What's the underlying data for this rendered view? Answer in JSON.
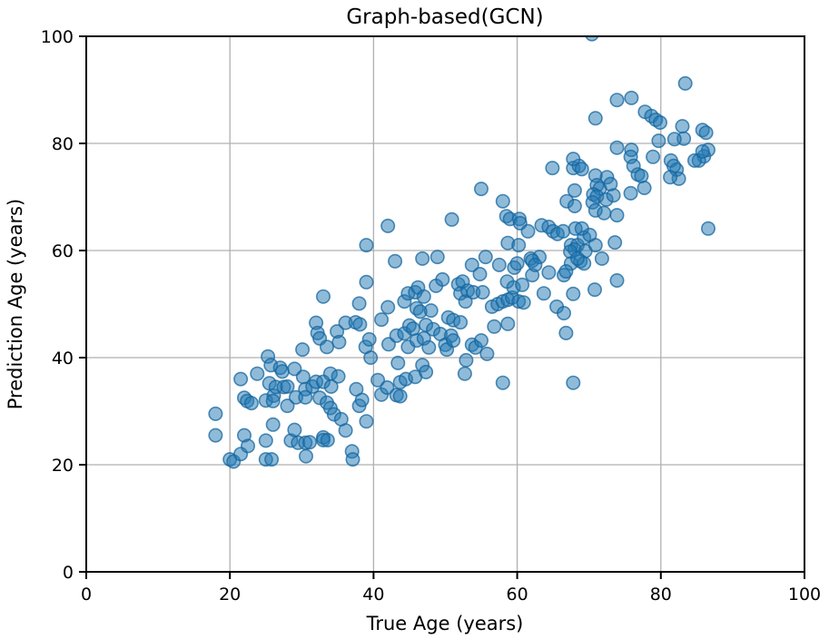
{
  "figure": {
    "title": "Graph-based(GCN)",
    "xlabel": "True Age (years)",
    "ylabel": "Prediction Age (years)"
  },
  "chart_data": {
    "type": "scatter",
    "title": "Graph-based(GCN)",
    "xlabel": "True Age (years)",
    "ylabel": "Prediction Age (years)",
    "xlim": [
      0,
      100
    ],
    "ylim": [
      0,
      100
    ],
    "xticks": [
      0,
      20,
      40,
      60,
      80,
      100
    ],
    "yticks": [
      0,
      20,
      40,
      60,
      80,
      100
    ],
    "grid": true,
    "legend": null,
    "colors": {
      "marker_fill": "rgba(31,119,180,0.5)",
      "marker_edge": "rgba(21,101,157,0.75)",
      "grid": "#b0b0b0",
      "spine": "#000000"
    },
    "marker": {
      "shape": "circle",
      "radius_px": 7.2
    },
    "points": [
      [
        18,
        29.5
      ],
      [
        18,
        25.5
      ],
      [
        20,
        21
      ],
      [
        20.5,
        20.6
      ],
      [
        21.5,
        36
      ],
      [
        21.5,
        22
      ],
      [
        22,
        32.5
      ],
      [
        22.4,
        31.9
      ],
      [
        22,
        25.5
      ],
      [
        22.5,
        23.5
      ],
      [
        23,
        31.5
      ],
      [
        23.8,
        37
      ],
      [
        25,
        32
      ],
      [
        25,
        21
      ],
      [
        25,
        24.5
      ],
      [
        25.3,
        40.2
      ],
      [
        25.7,
        38.6
      ],
      [
        25.5,
        35.2
      ],
      [
        25.8,
        21
      ],
      [
        26.1,
        32.9
      ],
      [
        26.4,
        34.5
      ],
      [
        26,
        27.5
      ],
      [
        26,
        31.9
      ],
      [
        27,
        38.1
      ],
      [
        27.3,
        37.4
      ],
      [
        27.5,
        34.5
      ],
      [
        28,
        31
      ],
      [
        28,
        34.6
      ],
      [
        28.5,
        24.5
      ],
      [
        29,
        37.9
      ],
      [
        29,
        26.5
      ],
      [
        29.5,
        24.1
      ],
      [
        29.2,
        32.6
      ],
      [
        30.1,
        41.5
      ],
      [
        30.2,
        36.4
      ],
      [
        30.5,
        34.1
      ],
      [
        30.5,
        32.6
      ],
      [
        30.5,
        24.1
      ],
      [
        30.6,
        21.6
      ],
      [
        31.5,
        34.6
      ],
      [
        31.1,
        24.2
      ],
      [
        32,
        35.5
      ],
      [
        32.5,
        32.5
      ],
      [
        33,
        35.5
      ],
      [
        33,
        25.1
      ],
      [
        33,
        24.6
      ],
      [
        32,
        46.5
      ],
      [
        32.2,
        44.6
      ],
      [
        32.5,
        43.6
      ],
      [
        33,
        51.4
      ],
      [
        33.5,
        42
      ],
      [
        33.5,
        31.6
      ],
      [
        33.6,
        24.6
      ],
      [
        34,
        37
      ],
      [
        34.1,
        34.6
      ],
      [
        34,
        30.6
      ],
      [
        34.5,
        29.4
      ],
      [
        35.1,
        36.5
      ],
      [
        35.5,
        28.5
      ],
      [
        34.9,
        44.9
      ],
      [
        35.2,
        42.9
      ],
      [
        36.1,
        46.5
      ],
      [
        36.1,
        26.4
      ],
      [
        37,
        22.5
      ],
      [
        37.1,
        21
      ],
      [
        37.5,
        46.6
      ],
      [
        37.6,
        34.1
      ],
      [
        38,
        50.1
      ],
      [
        38.1,
        46.2
      ],
      [
        38,
        31
      ],
      [
        38.4,
        32.1
      ],
      [
        39,
        61
      ],
      [
        39,
        54.1
      ],
      [
        38.9,
        42
      ],
      [
        39,
        28.1
      ],
      [
        39.4,
        43.4
      ],
      [
        39.6,
        40
      ],
      [
        40.6,
        35.8
      ],
      [
        41.1,
        47.1
      ],
      [
        41.1,
        33.1
      ],
      [
        42,
        64.6
      ],
      [
        42,
        49.4
      ],
      [
        42.1,
        42.5
      ],
      [
        41.9,
        34.4
      ],
      [
        43,
        58
      ],
      [
        43.2,
        44.1
      ],
      [
        43.2,
        33
      ],
      [
        43.7,
        32.8
      ],
      [
        43.4,
        39
      ],
      [
        43.7,
        35.4
      ],
      [
        44.3,
        44.5
      ],
      [
        44.3,
        50.5
      ],
      [
        44.5,
        36
      ],
      [
        44.8,
        42
      ],
      [
        44.8,
        52
      ],
      [
        45,
        46
      ],
      [
        45.5,
        45.4
      ],
      [
        45.8,
        36.4
      ],
      [
        45.8,
        52.2
      ],
      [
        46,
        43.2
      ],
      [
        46,
        49.2
      ],
      [
        46.2,
        53.1
      ],
      [
        46.5,
        48.6
      ],
      [
        46.8,
        38.6
      ],
      [
        46.8,
        58.5
      ],
      [
        47,
        43.6
      ],
      [
        47,
        51.4
      ],
      [
        47.3,
        37.3
      ],
      [
        47.3,
        46.1
      ],
      [
        47.7,
        41.9
      ],
      [
        48,
        48.8
      ],
      [
        48.3,
        45.3
      ],
      [
        48.7,
        53.4
      ],
      [
        48.9,
        58.8
      ],
      [
        49.3,
        44.4
      ],
      [
        49.6,
        54.6
      ],
      [
        50,
        42.4
      ],
      [
        50.2,
        41.5
      ],
      [
        50.4,
        47.5
      ],
      [
        50.8,
        44.1
      ],
      [
        51.1,
        43.2
      ],
      [
        51.1,
        47
      ],
      [
        50.9,
        65.8
      ],
      [
        51.8,
        53.7
      ],
      [
        52.1,
        46.6
      ],
      [
        52.1,
        52
      ],
      [
        52.4,
        54.2
      ],
      [
        52.7,
        37
      ],
      [
        52.8,
        50.5
      ],
      [
        52.9,
        39.5
      ],
      [
        53.1,
        52.5
      ],
      [
        53.7,
        42.4
      ],
      [
        53.7,
        57.3
      ],
      [
        53.9,
        52.2
      ],
      [
        54.2,
        41.9
      ],
      [
        54.8,
        55.6
      ],
      [
        55,
        43.2
      ],
      [
        55.2,
        52.2
      ],
      [
        55,
        71.5
      ],
      [
        55.6,
        58.8
      ],
      [
        55.8,
        40.7
      ],
      [
        56.5,
        49.5
      ],
      [
        56.8,
        45.8
      ],
      [
        57.3,
        50
      ],
      [
        57.5,
        57.3
      ],
      [
        58,
        50.5
      ],
      [
        58,
        35.3
      ],
      [
        58,
        69.2
      ],
      [
        58.6,
        54.2
      ],
      [
        58.7,
        46.3
      ],
      [
        58.7,
        50.8
      ],
      [
        59.3,
        51.2
      ],
      [
        59.5,
        53.1
      ],
      [
        59.6,
        56.8
      ],
      [
        60,
        57.6
      ],
      [
        60.2,
        50.5
      ],
      [
        60.9,
        50.3
      ],
      [
        60.7,
        53.6
      ],
      [
        61.9,
        58.5
      ],
      [
        62.1,
        55.4
      ],
      [
        63.1,
        58.8
      ],
      [
        63.7,
        52
      ],
      [
        64.4,
        55.9
      ],
      [
        65.5,
        49.5
      ],
      [
        66.5,
        55.4
      ],
      [
        66.5,
        48.3
      ],
      [
        66.8,
        44.6
      ],
      [
        67.8,
        35.3
      ],
      [
        58.5,
        66.4
      ],
      [
        59,
        65.9
      ],
      [
        60.3,
        65.9
      ],
      [
        60.4,
        65.1
      ],
      [
        58.7,
        61.4
      ],
      [
        60.2,
        61
      ],
      [
        61.5,
        63.6
      ],
      [
        63.4,
        64.7
      ],
      [
        64.4,
        64.4
      ],
      [
        65,
        63.6
      ],
      [
        65.6,
        63.1
      ],
      [
        66.4,
        63.6
      ],
      [
        68.1,
        64.1
      ],
      [
        64.9,
        75.4
      ],
      [
        67.8,
        75.4
      ],
      [
        68.6,
        75.8
      ],
      [
        69,
        75.2
      ],
      [
        70.9,
        74
      ],
      [
        72.5,
        73.7
      ],
      [
        71.1,
        72.2
      ],
      [
        71.5,
        71.6
      ],
      [
        70.6,
        70.5
      ],
      [
        71.1,
        70.1
      ],
      [
        68,
        71.2
      ],
      [
        66.9,
        69.2
      ],
      [
        70.5,
        69
      ],
      [
        72.4,
        69.5
      ],
      [
        73.4,
        70.3
      ],
      [
        68,
        68.3
      ],
      [
        70.9,
        67.5
      ],
      [
        72.1,
        67
      ],
      [
        73.9,
        66.6
      ],
      [
        67.5,
        61
      ],
      [
        68.4,
        61
      ],
      [
        68,
        60.2
      ],
      [
        69.5,
        59.9
      ],
      [
        67.4,
        59.8
      ],
      [
        69.3,
        62.4
      ],
      [
        70.1,
        62.9
      ],
      [
        69,
        64.1
      ],
      [
        70.9,
        61
      ],
      [
        73.6,
        61.5
      ],
      [
        62.1,
        58.1
      ],
      [
        62.5,
        57.3
      ],
      [
        67.5,
        57.6
      ],
      [
        68.8,
        58
      ],
      [
        69.3,
        57.6
      ],
      [
        68.4,
        58.5
      ],
      [
        71.8,
        58.5
      ],
      [
        66.8,
        56.1
      ],
      [
        73.9,
        54.4
      ],
      [
        70.8,
        52.7
      ],
      [
        67.8,
        51.9
      ],
      [
        70.4,
        100.4
      ],
      [
        83.4,
        91.2
      ],
      [
        73.9,
        88.1
      ],
      [
        75.9,
        88.5
      ],
      [
        70.9,
        84.7
      ],
      [
        77.8,
        85.9
      ],
      [
        78.7,
        85.1
      ],
      [
        79.3,
        84.4
      ],
      [
        79.9,
        83.9
      ],
      [
        83,
        83.2
      ],
      [
        85.8,
        82.5
      ],
      [
        86.3,
        82
      ],
      [
        83.2,
        80.9
      ],
      [
        79.7,
        80.5
      ],
      [
        81.9,
        80.8
      ],
      [
        73.9,
        79.2
      ],
      [
        75.9,
        78.8
      ],
      [
        86.6,
        78.8
      ],
      [
        75.8,
        77.5
      ],
      [
        78.9,
        77.5
      ],
      [
        86,
        77.6
      ],
      [
        85.3,
        76.8
      ],
      [
        81.4,
        76.8
      ],
      [
        84.7,
        76.8
      ],
      [
        82.2,
        75.1
      ],
      [
        81.8,
        75.8
      ],
      [
        85.8,
        78.5
      ],
      [
        76.2,
        75.8
      ],
      [
        76.8,
        74.2
      ],
      [
        77.3,
        73.9
      ],
      [
        82.5,
        73.4
      ],
      [
        81.3,
        73.7
      ],
      [
        77.7,
        71.7
      ],
      [
        75.8,
        70.7
      ],
      [
        73,
        72.4
      ],
      [
        67.8,
        77.1
      ],
      [
        86.6,
        64.1
      ]
    ]
  }
}
